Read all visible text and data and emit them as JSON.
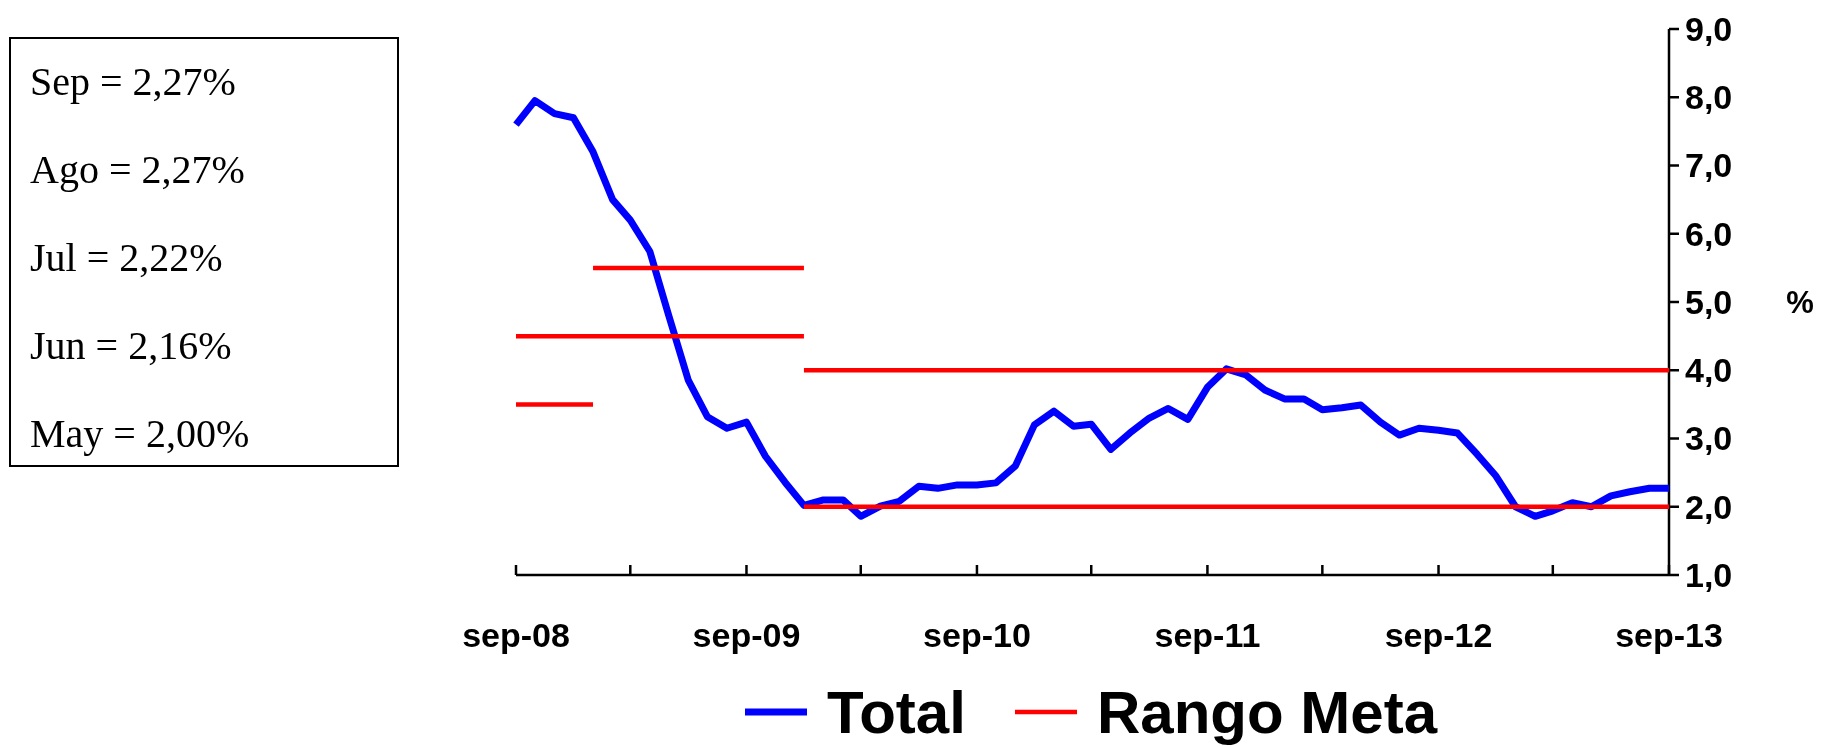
{
  "chart_data": {
    "type": "line",
    "x": [
      "2008-09",
      "2008-10",
      "2008-11",
      "2008-12",
      "2009-01",
      "2009-02",
      "2009-03",
      "2009-04",
      "2009-05",
      "2009-06",
      "2009-07",
      "2009-08",
      "2009-09",
      "2009-10",
      "2009-11",
      "2009-12",
      "2010-01",
      "2010-02",
      "2010-03",
      "2010-04",
      "2010-05",
      "2010-06",
      "2010-07",
      "2010-08",
      "2010-09",
      "2010-10",
      "2010-11",
      "2010-12",
      "2011-01",
      "2011-02",
      "2011-03",
      "2011-04",
      "2011-05",
      "2011-06",
      "2011-07",
      "2011-08",
      "2011-09",
      "2011-10",
      "2011-11",
      "2011-12",
      "2012-01",
      "2012-02",
      "2012-03",
      "2012-04",
      "2012-05",
      "2012-06",
      "2012-07",
      "2012-08",
      "2012-09",
      "2012-10",
      "2012-11",
      "2012-12",
      "2013-01",
      "2013-02",
      "2013-03",
      "2013-04",
      "2013-05",
      "2013-06",
      "2013-07",
      "2013-08",
      "2013-09"
    ],
    "series": [
      {
        "name": "Total",
        "color": "#0000ff",
        "values": [
          7.6,
          7.95,
          7.76,
          7.7,
          7.2,
          6.5,
          6.2,
          5.74,
          4.8,
          3.85,
          3.32,
          3.15,
          3.24,
          2.74,
          2.36,
          2.02,
          2.1,
          2.1,
          1.86,
          2.01,
          2.08,
          2.3,
          2.27,
          2.32,
          2.32,
          2.35,
          2.6,
          3.2,
          3.4,
          3.18,
          3.21,
          2.84,
          3.08,
          3.3,
          3.44,
          3.28,
          3.75,
          4.02,
          3.93,
          3.71,
          3.58,
          3.58,
          3.42,
          3.45,
          3.49,
          3.24,
          3.05,
          3.15,
          3.12,
          3.08,
          2.77,
          2.45,
          2.0,
          1.86,
          1.94,
          2.06,
          2.0,
          2.16,
          2.22,
          2.27,
          2.27
        ]
      },
      {
        "name": "Rango Meta",
        "color": "#ff0000",
        "x": [
          "2008-09",
          "2009-01"
        ],
        "values": [
          3.5,
          3.5
        ]
      },
      {
        "color": "#ff0000",
        "x": [
          "2008-09",
          "2009-12"
        ],
        "values": [
          4.5,
          4.5
        ]
      },
      {
        "color": "#ff0000",
        "x": [
          "2009-01",
          "2009-12"
        ],
        "values": [
          5.5,
          5.5
        ]
      },
      {
        "color": "#ff0000",
        "x": [
          "2009-12",
          "2013-09"
        ],
        "values": [
          2.0,
          2.0
        ]
      },
      {
        "color": "#ff0000",
        "x": [
          "2009-12",
          "2013-09"
        ],
        "values": [
          4.0,
          4.0
        ]
      }
    ],
    "xlim": [
      "2008-09",
      "2013-09"
    ],
    "xticks": [
      {
        "value": "2008-09",
        "label": "sep-08"
      },
      {
        "value": "2009-03",
        "label": null
      },
      {
        "value": "2009-09",
        "label": "sep-09"
      },
      {
        "value": "2010-03",
        "label": null
      },
      {
        "value": "2010-09",
        "label": "sep-10"
      },
      {
        "value": "2011-03",
        "label": null
      },
      {
        "value": "2011-09",
        "label": "sep-11"
      },
      {
        "value": "2012-03",
        "label": null
      },
      {
        "value": "2012-09",
        "label": "sep-12"
      },
      {
        "value": "2013-03",
        "label": null
      },
      {
        "value": "2013-09",
        "label": "sep-13"
      }
    ],
    "ylim": [
      1,
      9
    ],
    "yticks": [
      {
        "value": 1,
        "label": "1,0"
      },
      {
        "value": 2,
        "label": "2,0"
      },
      {
        "value": 3,
        "label": "3,0"
      },
      {
        "value": 4,
        "label": "4,0"
      },
      {
        "value": 5,
        "label": "5,0"
      },
      {
        "value": 6,
        "label": "6,0"
      },
      {
        "value": 7,
        "label": "7,0"
      },
      {
        "value": 8,
        "label": "8,0"
      },
      {
        "value": 9,
        "label": "9,0"
      }
    ],
    "ylabel": "%",
    "annotations": [
      "Sep = 2,27%",
      "Ago = 2,27%",
      "Jul = 2,22%",
      "Jun = 2,16%",
      "May = 2,00%"
    ],
    "legend": "bottom",
    "line_style": "solid"
  }
}
